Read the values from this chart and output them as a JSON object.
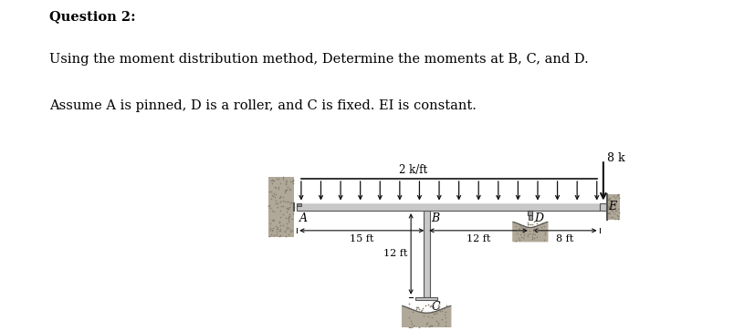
{
  "title_line1": "Question 2:",
  "title_line2": "Using the moment distribution method, Determine the moments at B, C, and D.",
  "title_line3": "Assume A is pinned, D is a roller, and C is fixed. EI is constant.",
  "background_color": "#ffffff",
  "text_color": "#000000",
  "beam_color": "#c8c8c8",
  "beam_edge_color": "#555555",
  "wall_color": "#b0a898",
  "load_label": "2 k/ft",
  "point_load_label": "8 k",
  "dim_AB": "15 ft",
  "dim_BD": "12 ft",
  "dim_DE": "8 ft",
  "dim_BC": "12 ft",
  "label_A": "A",
  "label_B": "B",
  "label_C": "C",
  "label_D": "D",
  "label_E": "E",
  "n_dist_arrows": 16,
  "figsize": [
    8.28,
    3.63
  ],
  "dpi": 100
}
